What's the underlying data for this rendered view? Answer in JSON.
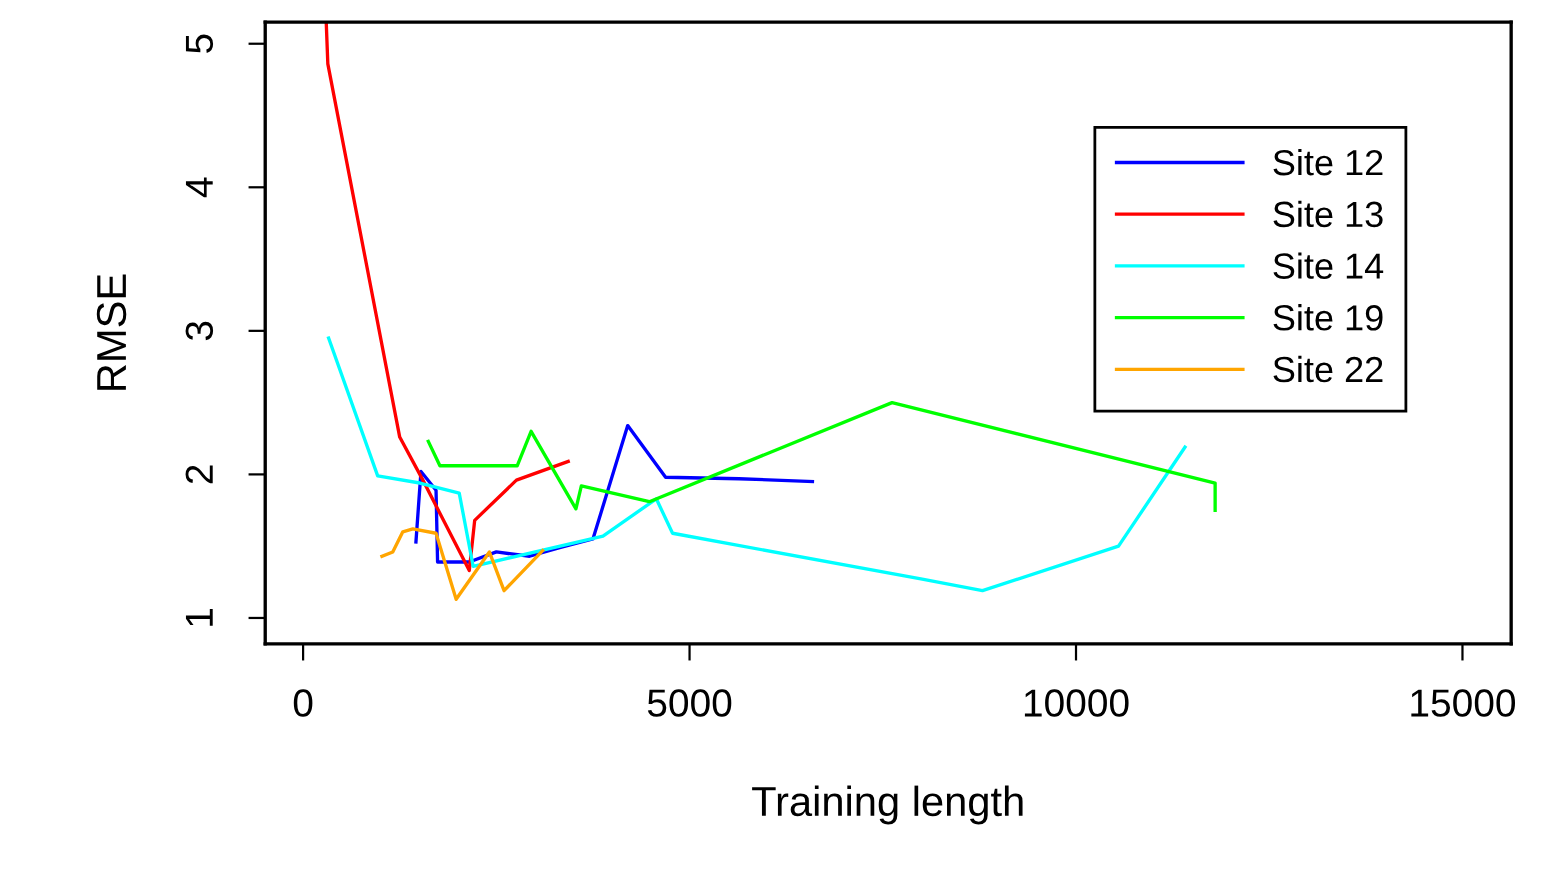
{
  "chart_data": {
    "type": "line",
    "xlabel": "Training length",
    "ylabel": "RMSE",
    "xlim": [
      -490,
      15630
    ],
    "ylim": [
      0.82,
      5.15
    ],
    "xticks": [
      0,
      5000,
      10000,
      15000
    ],
    "yticks": [
      1,
      2,
      3,
      4,
      5
    ],
    "grid": false,
    "legend": "top right",
    "marker": "none",
    "line_style": "solid",
    "series": [
      {
        "name": "Site 12",
        "color": "#0000ff",
        "x": [
          1460,
          1525,
          1720,
          1740,
          2150,
          2500,
          2930,
          3320,
          3750,
          4200,
          4690,
          5640,
          6590
        ],
        "values": [
          1.53,
          2.02,
          1.89,
          1.39,
          1.39,
          1.46,
          1.43,
          1.49,
          1.55,
          2.34,
          1.98,
          1.97,
          1.95
        ]
      },
      {
        "name": "Site 13",
        "color": "#ff0000",
        "x": [
          300,
          320,
          1250,
          1550,
          2150,
          2220,
          2760,
          3430
        ],
        "values": [
          5.14,
          4.86,
          2.26,
          1.96,
          1.33,
          1.68,
          1.96,
          2.09
        ]
      },
      {
        "name": "Site 14",
        "color": "#00ffff",
        "x": [
          330,
          965,
          1510,
          2020,
          2200,
          3880,
          4570,
          4780,
          8010,
          8790,
          10550,
          11410
        ],
        "values": [
          2.95,
          1.99,
          1.94,
          1.87,
          1.36,
          1.57,
          1.83,
          1.59,
          1.27,
          1.19,
          1.5,
          2.19
        ]
      },
      {
        "name": "Site 19",
        "color": "#00ff00",
        "x": [
          1620,
          1770,
          2770,
          2950,
          3530,
          3600,
          4480,
          7620,
          11800,
          11800
        ],
        "values": [
          2.23,
          2.06,
          2.06,
          2.3,
          1.76,
          1.92,
          1.81,
          2.5,
          1.94,
          1.75
        ]
      },
      {
        "name": "Site 22",
        "color": "#ffa500",
        "x": [
          1020,
          1160,
          1290,
          1420,
          1720,
          1980,
          2410,
          2600,
          3100
        ],
        "values": [
          1.43,
          1.46,
          1.6,
          1.62,
          1.59,
          1.13,
          1.46,
          1.19,
          1.47
        ]
      }
    ]
  }
}
